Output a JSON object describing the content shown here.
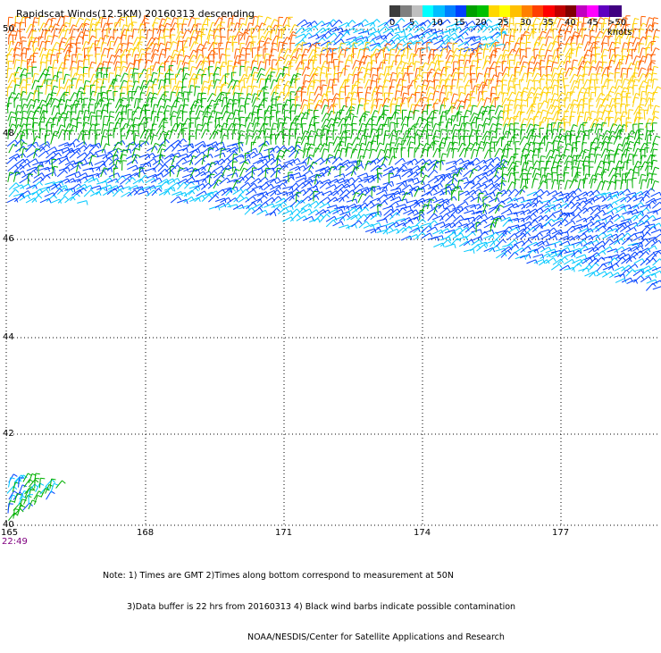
{
  "title": "Rapidscat Winds(12.5KM) 20160313 descending",
  "legend": {
    "labels": [
      "0",
      "5",
      "10",
      "15",
      "20",
      "25",
      "30",
      "35",
      "40",
      "45",
      ">50 knots"
    ],
    "colors": [
      "#3c3c3c",
      "#7f7f7f",
      "#bfbfbf",
      "#00ffff",
      "#00bfff",
      "#0080ff",
      "#0040ff",
      "#00a000",
      "#00c000",
      "#ffd700",
      "#ffff00",
      "#ffc000",
      "#ff8000",
      "#ff4000",
      "#ff0000",
      "#c00000",
      "#800000",
      "#c000c0",
      "#ff00ff",
      "#6000c0",
      "#400080"
    ]
  },
  "lat_labels": [
    "50",
    "48",
    "46",
    "44",
    "42",
    "40"
  ],
  "lon_labels": [
    "165",
    "168",
    "171",
    "174",
    "177"
  ],
  "time_label": "22:49",
  "notes": [
    "Note: 1) Times are GMT 2)Times along bottom correspond to measurement at 50N",
    "3)Data buffer is 22 hrs from 20160313 4) Black wind barbs indicate possible contamination",
    "NOAA/NESDIS/Center for Satellite Applications and Research"
  ],
  "colors": {
    "grid": "#000000",
    "calm": "#00c8ff",
    "light": "#0040ff",
    "moderate": "#00b000",
    "strong": "#ffd000",
    "gale": "#ff6000"
  }
}
